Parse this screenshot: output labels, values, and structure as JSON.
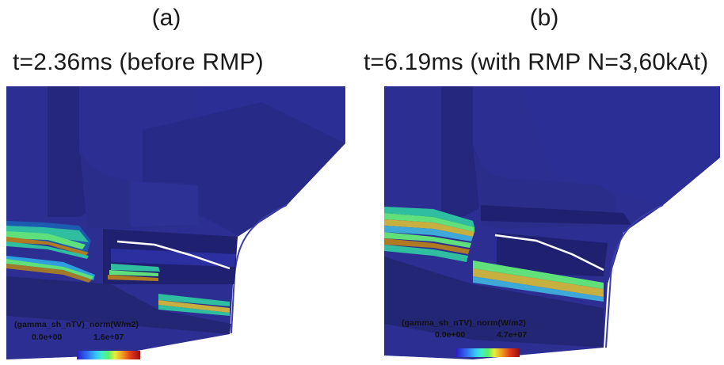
{
  "panels": [
    {
      "letter": "(a)",
      "time_label": "t=2.36ms (before RMP)",
      "colorbar": {
        "label": "(gamma_sh_nTV)_norm(W/m2)",
        "min": "0.0e+00",
        "max": "1.6e+07"
      }
    },
    {
      "letter": "(b)",
      "time_label": "t=6.19ms (with RMP N=3,60kAt)",
      "colorbar": {
        "label": "(gamma_sh_nTV)_norm(W/m2)",
        "min": "0.0e+00",
        "max": "4.7e+07"
      }
    }
  ],
  "colors": {
    "surface": "#2a2c8e",
    "surface_dark": "#1e1f6e",
    "highlight_line": "#ffffff"
  }
}
